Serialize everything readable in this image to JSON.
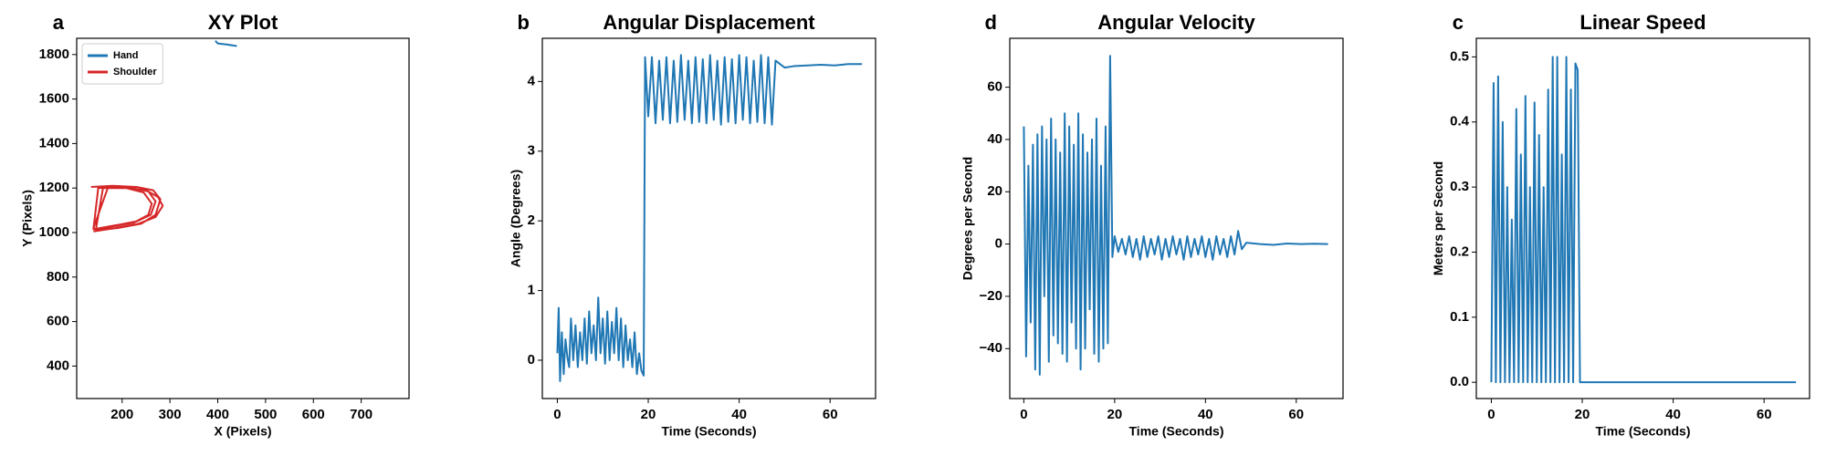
{
  "chart_data": [
    {
      "type": "line",
      "panel_label": "a",
      "title": "XY Plot",
      "xlabel": "X (Pixels)",
      "ylabel": "Y (Pixels)",
      "xlim": [
        105,
        800
      ],
      "ylim": [
        254,
        1873
      ],
      "xticks": [
        200,
        300,
        400,
        500,
        600,
        700
      ],
      "yticks": [
        400,
        600,
        800,
        1000,
        1200,
        1400,
        1600,
        1800
      ],
      "legend": "upper left",
      "series": [
        {
          "name": "Hand",
          "color": "#1f77b4",
          "x": [
            395,
            400,
            420,
            440
          ],
          "values": [
            1862,
            1850,
            1845,
            1838
          ]
        },
        {
          "name": "Shoulder",
          "color": "#d62728",
          "x": [
            135,
            180,
            230,
            265,
            280,
            270,
            240,
            190,
            150,
            140,
            170,
            220,
            255,
            270,
            260,
            230,
            180,
            140,
            150,
            200,
            245,
            262,
            255,
            225,
            175,
            145,
            160,
            210,
            250,
            275,
            285,
            270,
            235,
            185,
            140
          ],
          "values": [
            1205,
            1210,
            1205,
            1190,
            1150,
            1080,
            1040,
            1020,
            1010,
            1020,
            1200,
            1200,
            1185,
            1140,
            1080,
            1050,
            1030,
            1015,
            1200,
            1205,
            1180,
            1130,
            1080,
            1045,
            1025,
            1012,
            1200,
            1200,
            1190,
            1160,
            1120,
            1070,
            1040,
            1020,
            1005
          ]
        }
      ]
    },
    {
      "type": "line",
      "panel_label": "b",
      "title": "Angular Displacement",
      "xlabel": "Time (Seconds)",
      "ylabel": "Angle (Degrees)",
      "xlim": [
        -3.3,
        70
      ],
      "ylim": [
        -0.55,
        4.62
      ],
      "xticks": [
        0,
        20,
        40,
        60
      ],
      "yticks": [
        0,
        1,
        2,
        3,
        4
      ],
      "series": [
        {
          "color": "#1f77b4",
          "x": [
            0,
            0.3,
            0.6,
            1,
            1.4,
            1.8,
            2.2,
            2.6,
            3,
            3.5,
            4,
            4.5,
            5,
            5.5,
            6,
            6.5,
            7,
            7.5,
            8,
            8.5,
            9,
            9.5,
            10,
            10.5,
            11,
            11.5,
            12,
            12.5,
            13,
            13.5,
            14,
            14.5,
            15,
            15.5,
            16,
            16.5,
            17,
            17.5,
            18,
            18.5,
            19,
            19.3,
            20,
            20.8,
            21.6,
            22.4,
            23.2,
            24,
            24.8,
            25.6,
            26.4,
            27.2,
            28,
            28.8,
            29.6,
            30.4,
            31.2,
            32,
            32.8,
            33.6,
            34.4,
            35.2,
            36,
            36.8,
            37.6,
            38.4,
            39.2,
            40,
            40.8,
            41.6,
            42.4,
            43.2,
            44,
            44.8,
            45.6,
            46.4,
            47.2,
            48,
            49,
            50,
            52,
            55,
            58,
            61,
            64,
            67
          ],
          "values": [
            0.1,
            0.75,
            -0.3,
            0.4,
            -0.2,
            0.3,
            0.05,
            -0.1,
            0.6,
            0.0,
            0.5,
            -0.1,
            0.4,
            0.0,
            0.6,
            -0.05,
            0.7,
            0.1,
            0.5,
            0.0,
            0.9,
            0.1,
            0.6,
            -0.05,
            0.7,
            0.0,
            0.55,
            0.1,
            0.75,
            0.0,
            0.6,
            -0.1,
            0.5,
            0.0,
            0.3,
            -0.1,
            0.4,
            -0.2,
            0.1,
            -0.15,
            -0.22,
            4.35,
            3.5,
            4.35,
            3.4,
            4.3,
            3.45,
            4.35,
            3.4,
            4.3,
            3.42,
            4.38,
            3.45,
            4.3,
            3.4,
            4.35,
            3.42,
            4.32,
            3.4,
            4.38,
            3.45,
            4.3,
            3.38,
            4.35,
            3.42,
            4.32,
            3.4,
            4.38,
            3.45,
            4.35,
            3.4,
            4.3,
            3.42,
            4.38,
            3.4,
            4.35,
            3.38,
            4.3,
            4.25,
            4.2,
            4.22,
            4.23,
            4.24,
            4.23,
            4.25,
            4.25
          ]
        }
      ]
    },
    {
      "type": "line",
      "panel_label": "d",
      "title": "Angular Velocity",
      "xlabel": "Time (Seconds)",
      "ylabel": "Degrees per Second",
      "xlim": [
        -3.1,
        70.3
      ],
      "ylim": [
        -59.1,
        78.7
      ],
      "xticks": [
        0,
        20,
        40,
        60
      ],
      "yticks": [
        {
          "value": -40,
          "label": "−40"
        },
        {
          "value": -20,
          "label": "−20"
        },
        0,
        20,
        40,
        60
      ],
      "series": [
        {
          "color": "#1f77b4",
          "x": [
            0,
            0.5,
            1,
            1.5,
            2,
            2.5,
            3,
            3.5,
            4,
            4.5,
            5,
            5.5,
            6,
            6.5,
            7,
            7.5,
            8,
            8.5,
            9,
            9.5,
            10,
            10.5,
            11,
            11.5,
            12,
            12.5,
            13,
            13.5,
            14,
            14.5,
            15,
            15.5,
            16,
            16.5,
            17,
            17.5,
            18,
            18.5,
            19,
            19.5,
            20,
            20.8,
            21.6,
            22.4,
            23.2,
            24,
            24.8,
            25.6,
            26.4,
            27.2,
            28,
            28.8,
            29.6,
            30.4,
            31.2,
            32,
            32.8,
            33.6,
            34.4,
            35.2,
            36,
            36.8,
            37.6,
            38.4,
            39.2,
            40,
            40.8,
            41.6,
            42.4,
            43.2,
            44,
            44.8,
            45.6,
            46.4,
            47.2,
            48,
            49,
            52,
            55,
            58,
            61,
            64,
            67
          ],
          "values": [
            45,
            -43,
            30,
            -30,
            38,
            -48,
            42,
            -50,
            45,
            -20,
            40,
            -45,
            48,
            -35,
            40,
            -38,
            35,
            -42,
            50,
            -45,
            45,
            -30,
            38,
            -40,
            50,
            -48,
            42,
            -40,
            35,
            -25,
            40,
            -42,
            48,
            -45,
            30,
            -40,
            45,
            -38,
            72,
            -5,
            3,
            -3,
            2,
            -4,
            3,
            -5,
            2,
            -6,
            3,
            -5,
            2,
            -4,
            3,
            -6,
            2,
            -5,
            3,
            -4,
            2,
            -6,
            3,
            -5,
            2,
            -4,
            3,
            -5,
            2,
            -6,
            3,
            -4,
            2,
            -5,
            3,
            -4,
            5,
            -2,
            0.5,
            0,
            -0.3,
            0.2,
            0,
            0.1,
            0
          ]
        }
      ]
    },
    {
      "type": "line",
      "panel_label": "c",
      "title": "Linear Speed",
      "xlabel": "Time (Seconds)",
      "ylabel": "Meters per Second",
      "xlim": [
        -3.3,
        70
      ],
      "ylim": [
        -0.025,
        0.5286
      ],
      "xticks": [
        0,
        20,
        40,
        60
      ],
      "yticks": [
        {
          "value": 0,
          "label": "0.0"
        },
        0.1,
        0.2,
        0.3,
        0.4,
        0.5
      ],
      "series": [
        {
          "color": "#1f77b4",
          "x": [
            0,
            0.5,
            1,
            1.5,
            2,
            2.5,
            3,
            3.5,
            4,
            4.5,
            5,
            5.5,
            6,
            6.5,
            7,
            7.5,
            8,
            8.5,
            9,
            9.5,
            10,
            10.5,
            11,
            11.5,
            12,
            12.5,
            13,
            13.5,
            14,
            14.5,
            15,
            15.5,
            16,
            16.5,
            17,
            17.5,
            18,
            18.5,
            19,
            19.5,
            20,
            67
          ],
          "values": [
            0,
            0.46,
            0,
            0.47,
            0,
            0.4,
            0,
            0.3,
            0,
            0.25,
            0,
            0.42,
            0,
            0.35,
            0,
            0.44,
            0,
            0.3,
            0,
            0.43,
            0,
            0.38,
            0,
            0.3,
            0,
            0.45,
            0,
            0.5,
            0,
            0.5,
            0,
            0.35,
            0,
            0.5,
            0,
            0.45,
            0,
            0.49,
            0.48,
            0,
            0,
            0
          ]
        }
      ]
    }
  ]
}
